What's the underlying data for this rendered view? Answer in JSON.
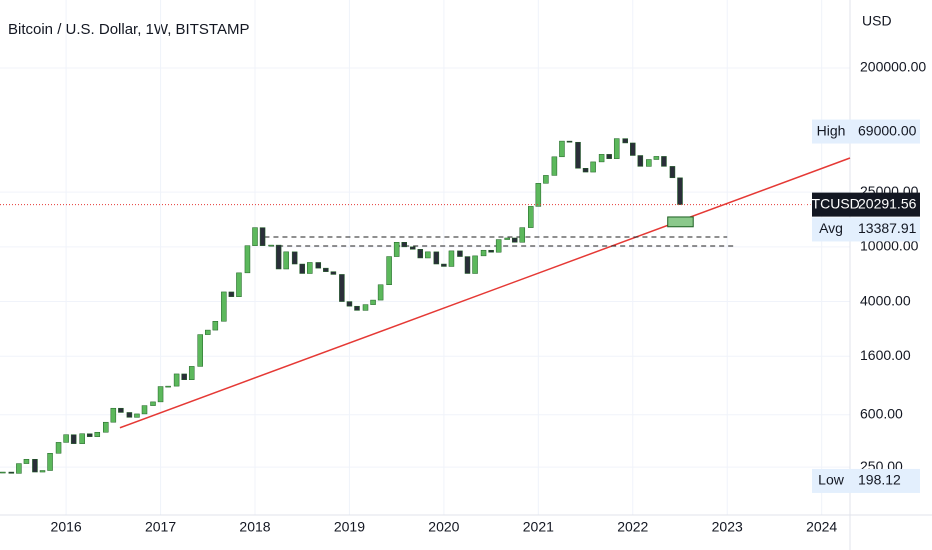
{
  "chart_data": {
    "type": "candle",
    "title": "Bitcoin / U.S. Dollar, 1W, BITSTAMP",
    "y_axis_label": "USD",
    "log_scale": true,
    "xlim": [
      2015.3,
      2024.3
    ],
    "xticks": [
      2016,
      2017,
      2018,
      2019,
      2020,
      2021,
      2022,
      2023,
      2024
    ],
    "ylim": [
      112,
      625000
    ],
    "yticks": [
      {
        "value": 200000,
        "label": "200000.00"
      },
      {
        "value": 25000,
        "label": "25000.00"
      },
      {
        "value": 10000,
        "label": "10000.00"
      },
      {
        "value": 4000,
        "label": "4000.00"
      },
      {
        "value": 1600,
        "label": "1600.00"
      },
      {
        "value": 600,
        "label": "600.00"
      },
      {
        "value": 250,
        "label": "250.00"
      }
    ],
    "up_color": "#5cb85c",
    "down_color": "#2a2e39",
    "x": [
      2015.33,
      2015.42,
      2015.5,
      2015.58,
      2015.67,
      2015.75,
      2015.83,
      2015.92,
      2016.0,
      2016.08,
      2016.17,
      2016.25,
      2016.33,
      2016.42,
      2016.5,
      2016.58,
      2016.67,
      2016.75,
      2016.83,
      2016.92,
      2017.0,
      2017.08,
      2017.17,
      2017.25,
      2017.33,
      2017.42,
      2017.5,
      2017.58,
      2017.67,
      2017.75,
      2017.83,
      2017.92,
      2018.0,
      2018.08,
      2018.17,
      2018.25,
      2018.33,
      2018.42,
      2018.5,
      2018.58,
      2018.67,
      2018.75,
      2018.83,
      2018.92,
      2019.0,
      2019.08,
      2019.17,
      2019.25,
      2019.33,
      2019.42,
      2019.5,
      2019.58,
      2019.67,
      2019.75,
      2019.83,
      2019.92,
      2020.0,
      2020.08,
      2020.17,
      2020.25,
      2020.33,
      2020.42,
      2020.5,
      2020.58,
      2020.67,
      2020.75,
      2020.83,
      2020.92,
      2021.0,
      2021.08,
      2021.17,
      2021.25,
      2021.33,
      2021.42,
      2021.5,
      2021.58,
      2021.67,
      2021.75,
      2021.83,
      2021.92,
      2022.0,
      2022.08,
      2022.17,
      2022.25,
      2022.33,
      2022.42,
      2022.5
    ],
    "values": [
      230,
      225,
      265,
      285,
      230,
      236,
      315,
      378,
      430,
      370,
      437,
      416,
      448,
      530,
      670,
      624,
      575,
      609,
      700,
      745,
      963,
      970,
      1190,
      1080,
      1350,
      2300,
      2480,
      2875,
      4700,
      4340,
      6470,
      10200,
      13800,
      10200,
      10300,
      6900,
      9200,
      7500,
      6400,
      7700,
      7000,
      6600,
      6300,
      4000,
      3700,
      3450,
      3800,
      4100,
      5300,
      8500,
      10800,
      10000,
      9600,
      8300,
      9200,
      7500,
      7200,
      9350,
      8500,
      6400,
      8600,
      9450,
      9140,
      11300,
      11600,
      10800,
      13800,
      19700,
      29000,
      33100,
      45200,
      58800,
      57700,
      37300,
      35000,
      41500,
      47100,
      43800,
      61300,
      57000,
      46200,
      38500,
      43200,
      45500,
      38500,
      31800,
      20291.56
    ],
    "trendline": {
      "x": [
        2016.57,
        2024.3
      ],
      "values": [
        483,
        44300
      ],
      "color": "#e53935"
    },
    "hlines": [
      {
        "x": [
          2018.1,
          2023.0
        ],
        "value": 11800
      },
      {
        "x": [
          2018.15,
          2023.1
        ],
        "value": 10150
      }
    ],
    "box": {
      "x": [
        2022.37,
        2022.64
      ],
      "values": [
        14000,
        16500
      ],
      "color": "#8bc98b"
    },
    "price_labels": [
      {
        "name": "High",
        "value": 69000,
        "label": "69000.00",
        "style": "light"
      },
      {
        "name": "BTCUSD",
        "value": 20291.56,
        "label": "20291.56",
        "style": "dark"
      },
      {
        "name": "Avg",
        "value": 13387.91,
        "label": "13387.91",
        "style": "light"
      },
      {
        "name": "Low",
        "value": 198.12,
        "label": "198.12",
        "style": "light"
      }
    ]
  }
}
